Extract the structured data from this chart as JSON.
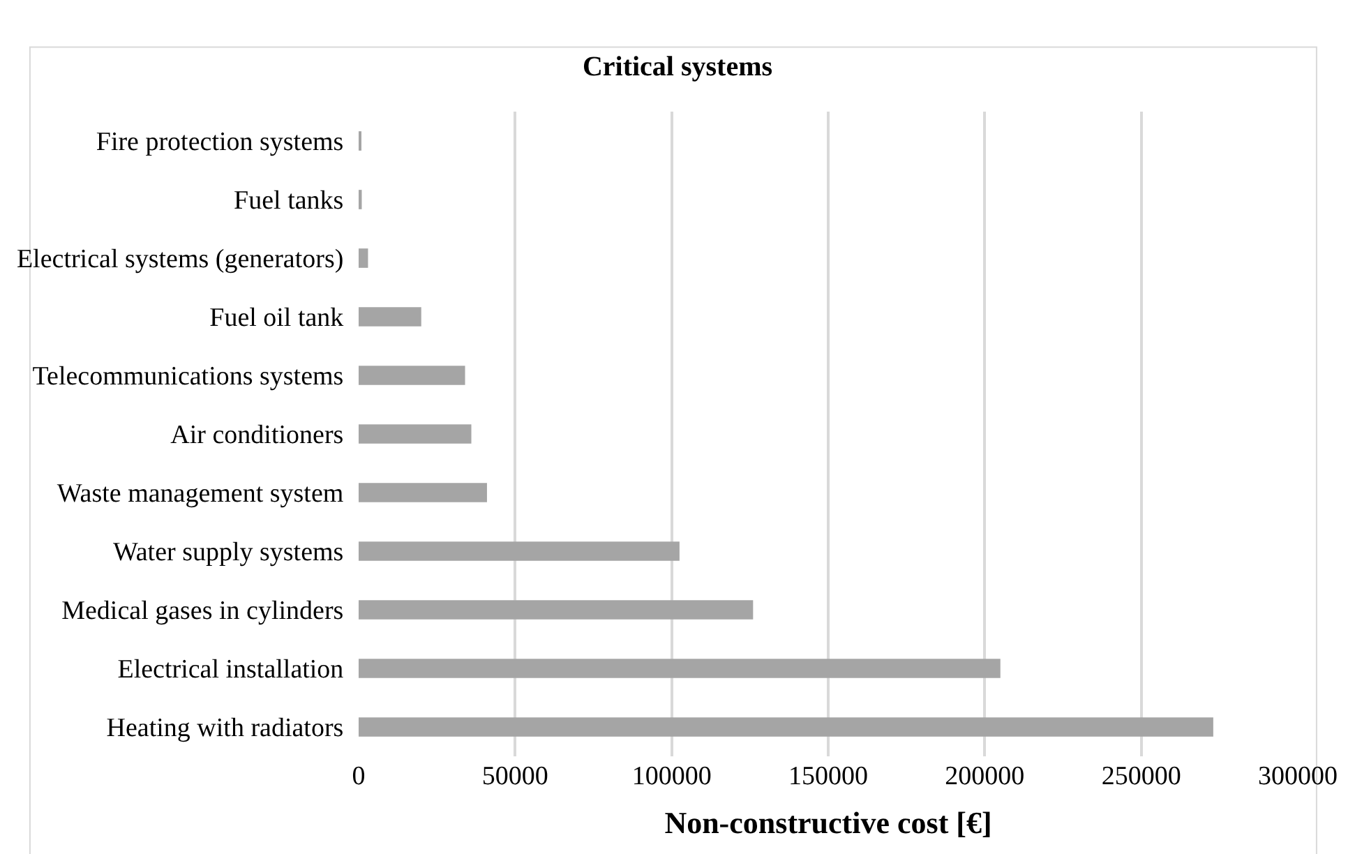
{
  "chart_data": {
    "type": "bar",
    "orientation": "horizontal",
    "title": "Critical systems",
    "xlabel": "Non-constructive cost [€]",
    "categories": [
      "Fire protection systems",
      "Fuel tanks",
      "Electrical systems (generators)",
      "Fuel oil tank",
      "Telecommunications systems",
      "Air conditioners",
      "Waste management system",
      "Water supply systems",
      "Medical gases in cylinders",
      "Electrical installation",
      "Heating with radiators"
    ],
    "values": [
      500,
      1000,
      3000,
      20000,
      34000,
      36000,
      41000,
      102500,
      126000,
      205000,
      273000
    ],
    "color": "#a5a5a5",
    "xlim": [
      0,
      300000
    ],
    "xticks": [
      0,
      50000,
      100000,
      150000,
      200000,
      250000,
      300000
    ],
    "grid": "x",
    "legend": false
  }
}
